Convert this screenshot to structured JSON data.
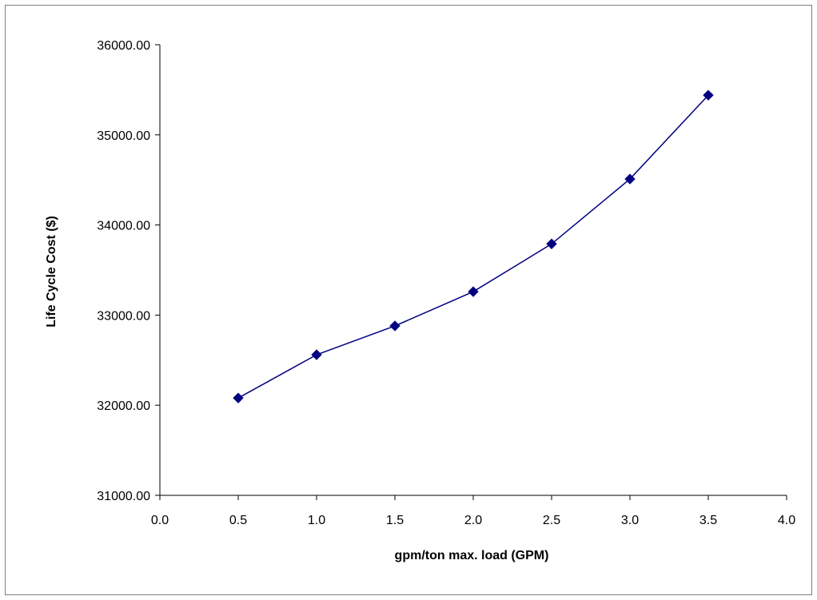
{
  "chart_data": {
    "type": "line",
    "title": "",
    "xlabel": "gpm/ton max. load (GPM)",
    "ylabel": "Life Cycle Cost ($)",
    "xlim": [
      0.0,
      4.0
    ],
    "ylim": [
      31000,
      36000
    ],
    "x_ticks": [
      "0.0",
      "0.5",
      "1.0",
      "1.5",
      "2.0",
      "2.5",
      "3.0",
      "3.5",
      "4.0"
    ],
    "y_ticks": [
      "31000.00",
      "32000.00",
      "33000.00",
      "34000.00",
      "35000.00",
      "36000.00"
    ],
    "grid": false,
    "legend": "none",
    "series": [
      {
        "x": [
          0.5,
          1.0,
          1.5,
          2.0,
          2.5,
          3.0,
          3.5
        ],
        "values": [
          32080,
          32560,
          32880,
          33260,
          33790,
          34510,
          35440
        ],
        "color": "#000080",
        "marker": "diamond"
      }
    ]
  }
}
